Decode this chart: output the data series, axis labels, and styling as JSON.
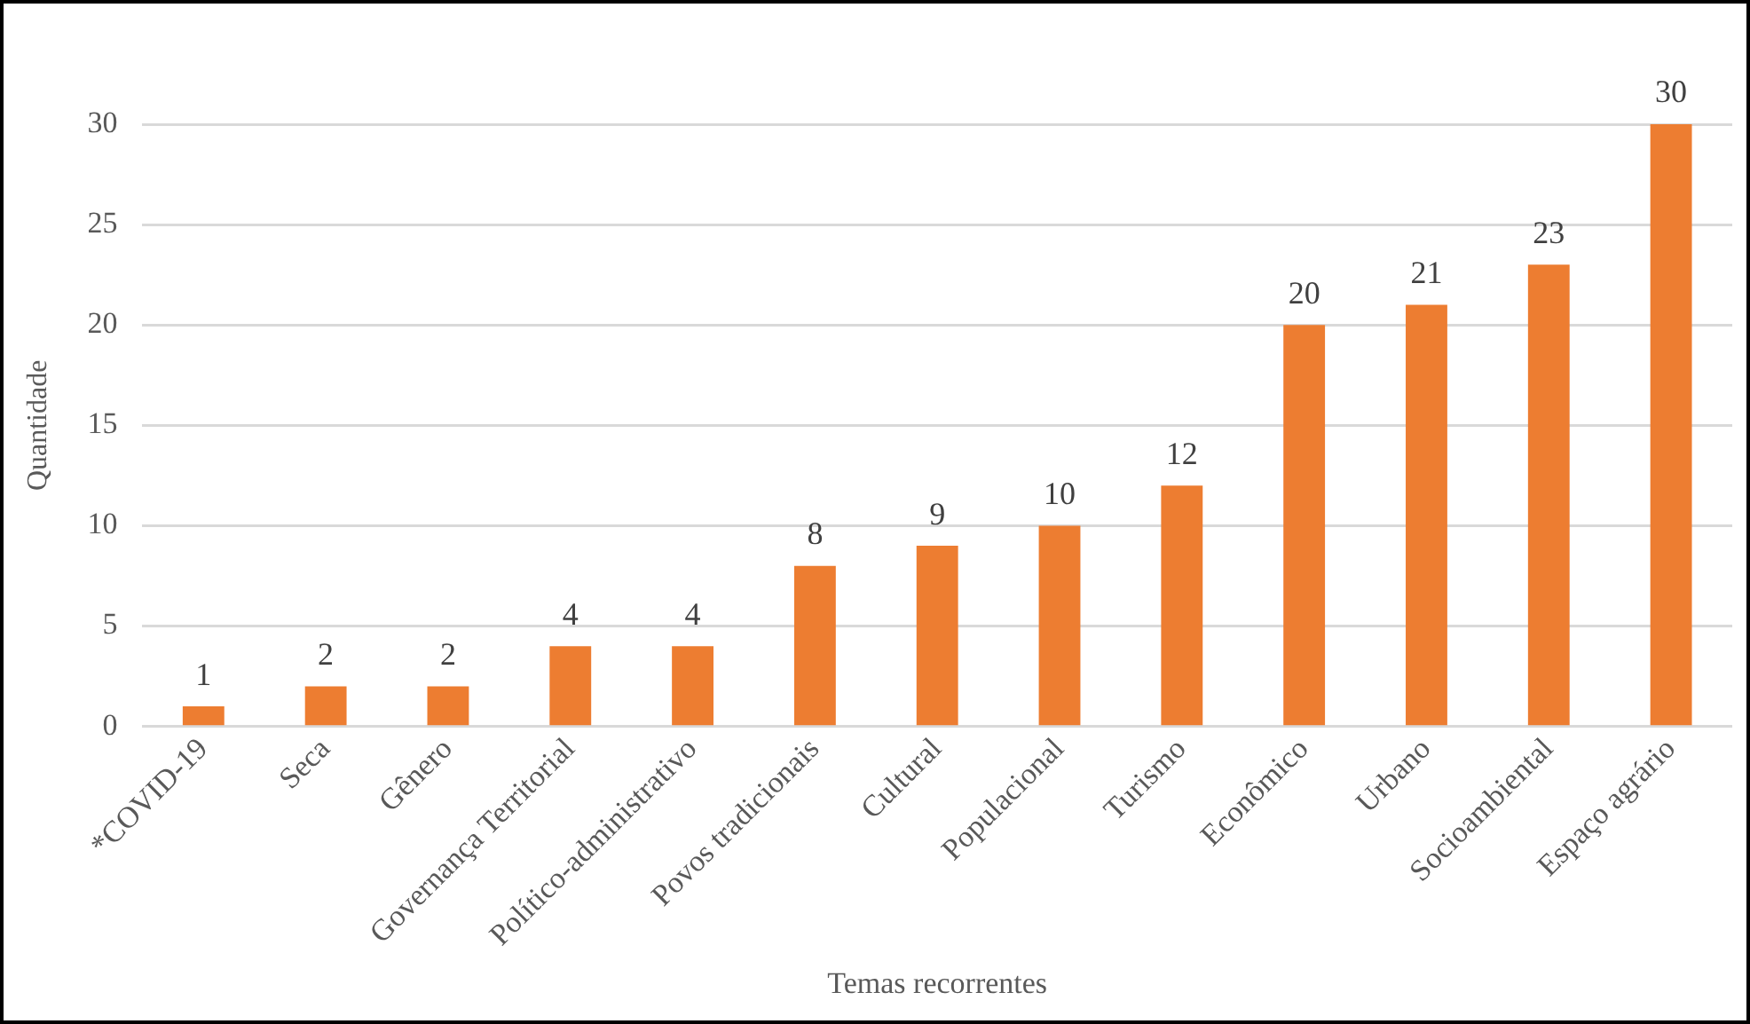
{
  "chart_data": {
    "type": "bar",
    "xlabel": "Temas recorrentes",
    "ylabel": "Quantidade",
    "categories": [
      "*COVID-19",
      "Seca",
      "Gênero",
      "Governança Territorial",
      "Político-administrativo",
      "Povos tradicionais",
      "Cultural",
      "Populacional",
      "Turismo",
      "Econômico",
      "Urbano",
      "Socioambiental",
      "Espaço agrário"
    ],
    "values": [
      1,
      2,
      2,
      4,
      4,
      8,
      9,
      10,
      12,
      20,
      21,
      23,
      30
    ],
    "color": "#ed7d31",
    "ylim": [
      0,
      30
    ],
    "yticks": [
      0,
      5,
      10,
      15,
      20,
      25,
      30
    ],
    "grid": "y",
    "data_labels": true,
    "legend": false
  }
}
